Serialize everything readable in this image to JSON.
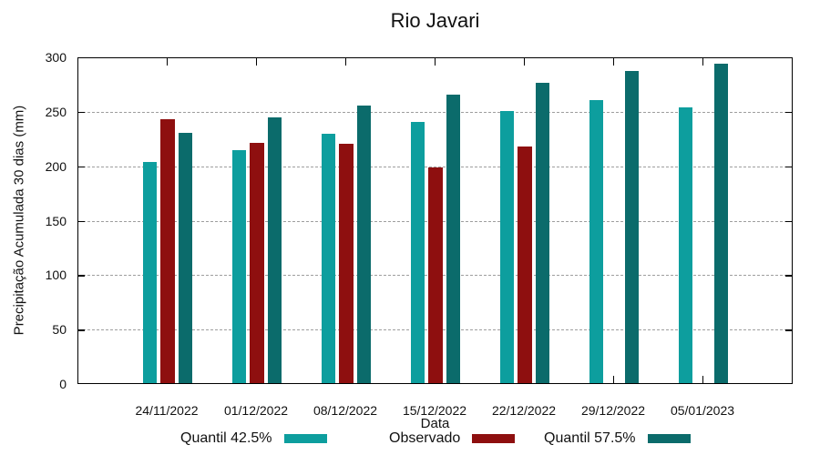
{
  "chart_data": {
    "type": "bar",
    "title": "Rio Javari",
    "xlabel": "Data",
    "ylabel": "Precipitação Acumulada 30 dias (mm)",
    "ylim": [
      0,
      300
    ],
    "yticks": [
      0,
      50,
      100,
      150,
      200,
      250,
      300
    ],
    "grid": "horizontal dashed at yticks 50-250",
    "legend_position": "bottom",
    "categories": [
      "24/11/2022",
      "01/12/2022",
      "08/12/2022",
      "15/12/2022",
      "22/12/2022",
      "29/12/2022",
      "05/01/2023"
    ],
    "series": [
      {
        "name": "Quantil 42.5%",
        "color": "#0d9e9e",
        "values": [
          203,
          214,
          229,
          240,
          250,
          260,
          253
        ]
      },
      {
        "name": "Observado",
        "color": "#8e0f0f",
        "values": [
          242,
          221,
          220,
          198,
          217,
          null,
          null
        ]
      },
      {
        "name": "Quantil 57.5%",
        "color": "#0b6b6b",
        "values": [
          230,
          244,
          255,
          265,
          276,
          287,
          293
        ]
      }
    ]
  },
  "colors": {
    "axis": "#000000",
    "grid": "#9e9e9e",
    "background": "#ffffff"
  }
}
